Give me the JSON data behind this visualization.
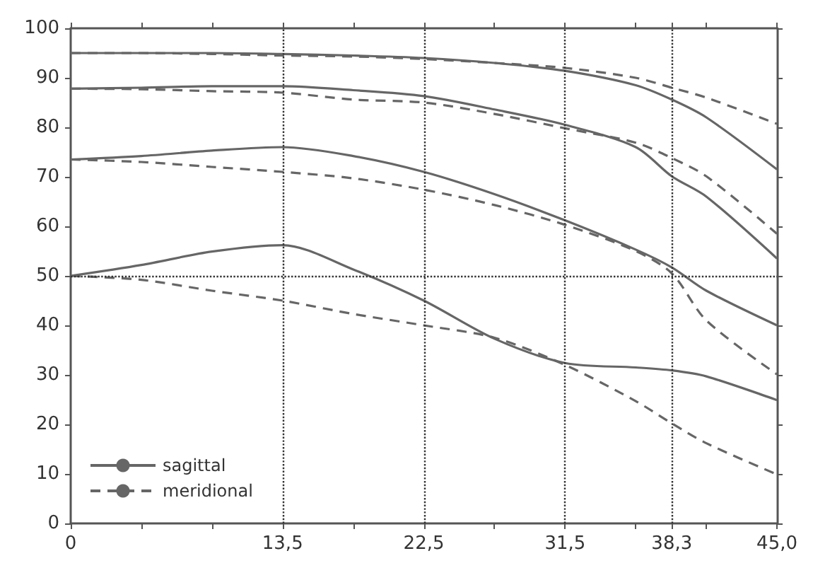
{
  "chart_data": {
    "type": "line",
    "x": [
      0,
      4.5,
      9,
      13.5,
      18,
      22.5,
      27,
      31.5,
      36,
      38.3,
      40.5,
      45
    ],
    "xlim": [
      0,
      45
    ],
    "xticks": [
      0,
      {
        "value": 4.5,
        "label": null
      },
      {
        "value": 9,
        "label": null
      },
      {
        "value": 13.5,
        "label": "13,5"
      },
      {
        "value": 18,
        "label": null
      },
      {
        "value": 22.5,
        "label": "22,5"
      },
      {
        "value": 27,
        "label": null
      },
      {
        "value": 31.5,
        "label": "31,5"
      },
      {
        "value": 36,
        "label": null
      },
      {
        "value": 38.3,
        "label": "38,3"
      },
      {
        "value": 40.5,
        "label": null
      },
      {
        "value": 45,
        "label": "45,0"
      }
    ],
    "ylim": [
      0,
      100
    ],
    "yticks": [
      0,
      10,
      20,
      30,
      40,
      50,
      60,
      70,
      80,
      90,
      100
    ],
    "grid": false,
    "legend": "bottom left",
    "marker": "none",
    "ref_lines": [
      {
        "axis": "x",
        "value": 13.5,
        "color": "#333333",
        "line_style": "dotted"
      },
      {
        "axis": "x",
        "value": 22.5,
        "color": "#333333",
        "line_style": "dotted"
      },
      {
        "axis": "x",
        "value": 31.5,
        "color": "#333333",
        "line_style": "dotted"
      },
      {
        "axis": "x",
        "value": 38.3,
        "color": "#333333",
        "line_style": "dotted"
      },
      {
        "axis": "y",
        "value": 50,
        "color": "#333333",
        "line_style": "dotted"
      }
    ],
    "series": [
      {
        "name": "sagittal",
        "color": "#666666",
        "line_style": "solid",
        "values": [
          95,
          95,
          95,
          94.8,
          94.5,
          94,
          93,
          91.4,
          88.5,
          85.6,
          82,
          71.5
        ]
      },
      {
        "name": "meridional",
        "color": "#666666",
        "line_style": "dashed",
        "values": [
          95,
          95,
          94.8,
          94.5,
          94.3,
          93.8,
          93,
          92,
          90,
          88,
          86,
          80.7
        ]
      },
      {
        "color": "#666666",
        "line_style": "solid",
        "values": [
          87.8,
          88,
          88.3,
          88.3,
          87.5,
          86.3,
          83.6,
          80.5,
          76,
          70.1,
          66,
          53.5
        ]
      },
      {
        "color": "#666666",
        "line_style": "dashed",
        "values": [
          87.8,
          87.7,
          87.3,
          87,
          85.6,
          85,
          82.7,
          79.8,
          76.9,
          73.8,
          70.1,
          58.5
        ]
      },
      {
        "color": "#666666",
        "line_style": "solid",
        "values": [
          73.5,
          74.2,
          75.3,
          76,
          74.2,
          71,
          66.5,
          61.2,
          55.3,
          51.7,
          47,
          40
        ]
      },
      {
        "color": "#666666",
        "line_style": "dashed",
        "values": [
          73.5,
          73,
          72,
          71,
          69.7,
          67.4,
          64.3,
          60.3,
          55,
          50.5,
          41,
          30.1
        ]
      },
      {
        "color": "#666666",
        "line_style": "solid",
        "values": [
          50,
          52.2,
          54.9,
          56.2,
          51.3,
          45,
          37.3,
          32.4,
          31.5,
          30.9,
          29.7,
          24.9
        ]
      },
      {
        "color": "#666666",
        "line_style": "dashed",
        "values": [
          50,
          49.2,
          47,
          45,
          42.3,
          40,
          37.5,
          32,
          24.7,
          20.2,
          16.2,
          9.9
        ]
      }
    ]
  }
}
